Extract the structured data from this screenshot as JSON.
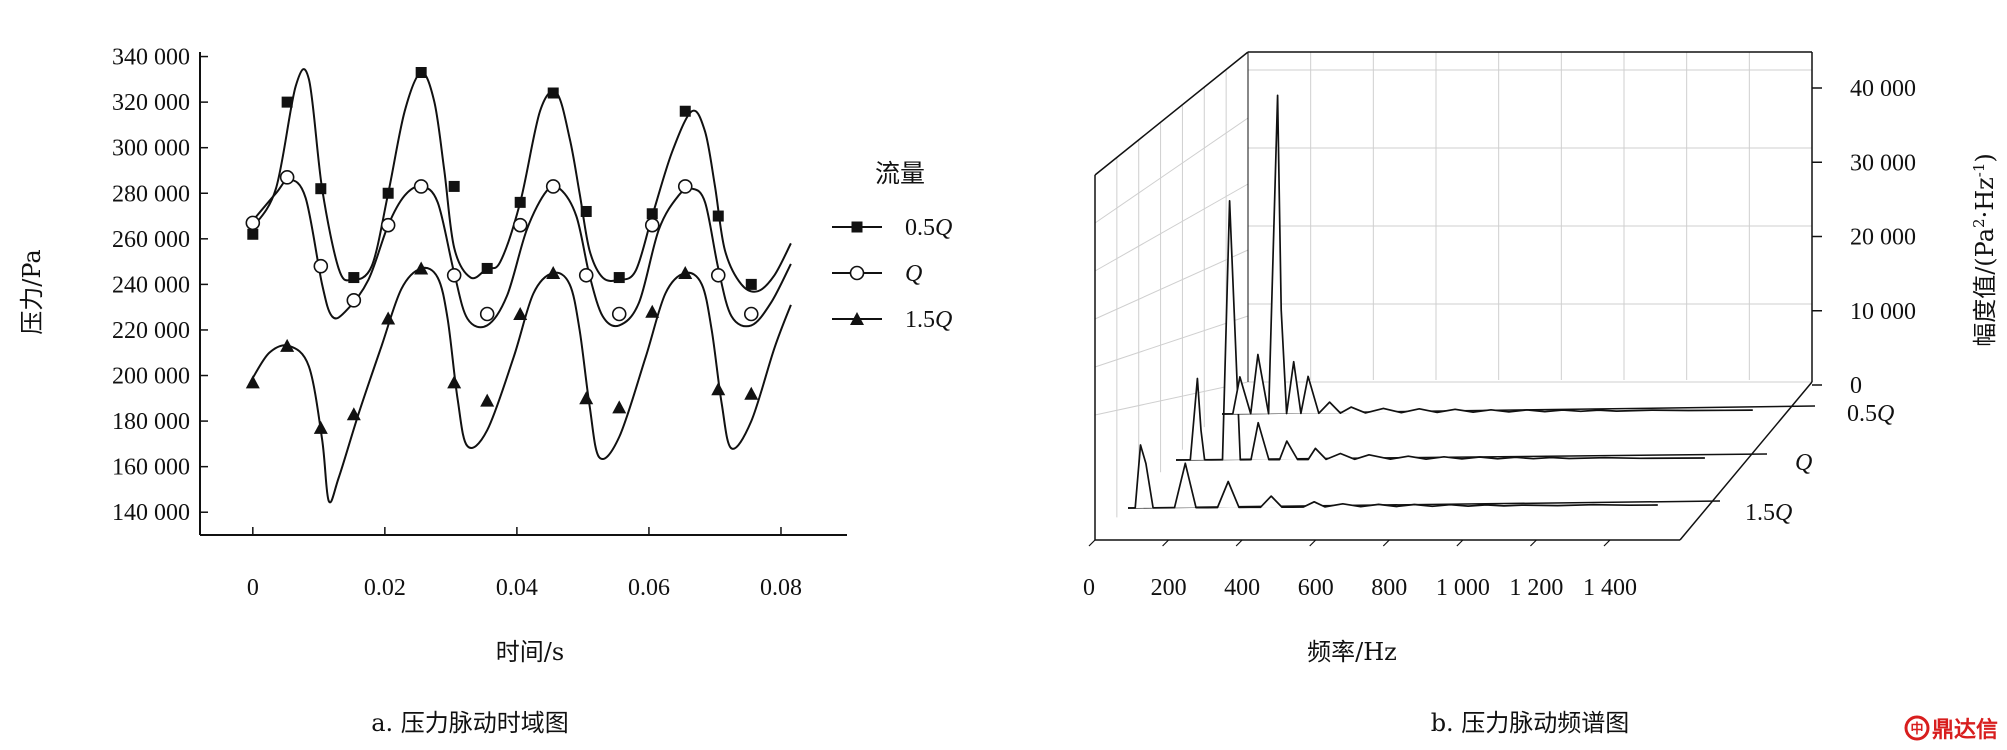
{
  "chart_data": [
    {
      "type": "line",
      "caption": "a. 压力脉动时域图",
      "xlabel": "时间/s",
      "ylabel": "压力/Pa",
      "xlim": [
        -0.008,
        0.09
      ],
      "ylim": [
        130000,
        342000
      ],
      "x_ticks": [
        0,
        0.02,
        0.04,
        0.06,
        0.08
      ],
      "x_tick_labels": [
        "0",
        "0.02",
        "0.04",
        "0.06",
        "0.08"
      ],
      "y_ticks": [
        140000,
        160000,
        180000,
        200000,
        220000,
        240000,
        260000,
        280000,
        300000,
        320000,
        340000
      ],
      "y_tick_labels": [
        "140 000",
        "160 000",
        "180 000",
        "200 000",
        "220 000",
        "240 000",
        "260 000",
        "280 000",
        "300 000",
        "320 000",
        "340 000"
      ],
      "legend": {
        "title": "流量",
        "placement": "right"
      },
      "series": [
        {
          "name": "0.5Q",
          "label_prefix": "0.5",
          "label_italic": "Q",
          "marker": "square",
          "x": [
            0,
            0.0035,
            0.0065,
            0.0085,
            0.0105,
            0.013,
            0.015,
            0.018,
            0.0205,
            0.023,
            0.0255,
            0.0275,
            0.029,
            0.0305,
            0.033,
            0.0355,
            0.0375,
            0.0405,
            0.0435,
            0.046,
            0.048,
            0.0495,
            0.051,
            0.053,
            0.0555,
            0.058,
            0.0605,
            0.0635,
            0.0665,
            0.0685,
            0.07,
            0.0715,
            0.074,
            0.0765,
            0.079,
            0.0815
          ],
          "y": [
            265000,
            282000,
            327000,
            330000,
            282000,
            247000,
            242000,
            248000,
            280000,
            316000,
            333000,
            320000,
            290000,
            256000,
            243000,
            247000,
            250000,
            276000,
            316000,
            324000,
            304000,
            280000,
            255000,
            243000,
            242000,
            246000,
            270000,
            298000,
            316000,
            307000,
            283000,
            255000,
            240000,
            237000,
            244000,
            258000
          ],
          "marker_x": [
            0,
            0.0052,
            0.0103,
            0.0153,
            0.0205,
            0.0255,
            0.0305,
            0.0355,
            0.0405,
            0.0455,
            0.0505,
            0.0555,
            0.0605,
            0.0655,
            0.0705,
            0.0755
          ],
          "marker_y": [
            262000,
            320000,
            282000,
            243000,
            280000,
            333000,
            283000,
            247000,
            276000,
            324000,
            272000,
            243000,
            271000,
            316000,
            270000,
            240000
          ]
        },
        {
          "name": "Q",
          "label_prefix": "",
          "label_italic": "Q",
          "marker": "circle",
          "x": [
            0,
            0.0035,
            0.0055,
            0.008,
            0.0105,
            0.012,
            0.014,
            0.0175,
            0.0205,
            0.023,
            0.0255,
            0.028,
            0.0305,
            0.0325,
            0.0355,
            0.0385,
            0.0415,
            0.0445,
            0.0465,
            0.049,
            0.051,
            0.053,
            0.0555,
            0.0585,
            0.0615,
            0.0645,
            0.0665,
            0.0685,
            0.0705,
            0.0725,
            0.0755,
            0.0785,
            0.0815
          ],
          "y": [
            268000,
            280000,
            286000,
            278000,
            240000,
            226000,
            228000,
            242000,
            266000,
            279000,
            283000,
            276000,
            245000,
            225000,
            222000,
            235000,
            264000,
            281000,
            282000,
            270000,
            244000,
            226000,
            222000,
            232000,
            264000,
            279000,
            282000,
            276000,
            247000,
            226000,
            222000,
            232000,
            249000
          ],
          "marker_x": [
            0,
            0.0052,
            0.0103,
            0.0153,
            0.0205,
            0.0255,
            0.0305,
            0.0355,
            0.0405,
            0.0455,
            0.0505,
            0.0555,
            0.0605,
            0.0655,
            0.0705,
            0.0755
          ],
          "marker_y": [
            267000,
            287000,
            248000,
            233000,
            266000,
            283000,
            244000,
            227000,
            266000,
            283000,
            244000,
            227000,
            266000,
            283000,
            244000,
            227000
          ]
        },
        {
          "name": "1.5Q",
          "label_prefix": "1.5",
          "label_italic": "Q",
          "marker": "triangle",
          "x": [
            0,
            0.0025,
            0.0055,
            0.0085,
            0.0105,
            0.0115,
            0.013,
            0.016,
            0.0195,
            0.0225,
            0.0255,
            0.028,
            0.0295,
            0.031,
            0.0325,
            0.0355,
            0.0395,
            0.0425,
            0.0455,
            0.048,
            0.0495,
            0.051,
            0.0525,
            0.0555,
            0.0595,
            0.0625,
            0.0655,
            0.068,
            0.0695,
            0.071,
            0.0725,
            0.0755,
            0.079,
            0.0815
          ],
          "y": [
            199000,
            210000,
            213000,
            204000,
            172000,
            145000,
            155000,
            183000,
            213000,
            238000,
            247000,
            243000,
            225000,
            190000,
            169000,
            176000,
            208000,
            236000,
            245000,
            240000,
            220000,
            187000,
            164000,
            173000,
            208000,
            236000,
            245000,
            240000,
            220000,
            188000,
            168000,
            180000,
            212000,
            231000
          ],
          "marker_x": [
            0,
            0.0052,
            0.0103,
            0.0153,
            0.0205,
            0.0255,
            0.0305,
            0.0355,
            0.0405,
            0.0455,
            0.0505,
            0.0555,
            0.0605,
            0.0655,
            0.0705,
            0.0755
          ],
          "marker_y": [
            197000,
            213000,
            177000,
            183000,
            225000,
            247000,
            197000,
            189000,
            227000,
            245000,
            190000,
            186000,
            228000,
            245000,
            194000,
            192000
          ]
        }
      ]
    },
    {
      "type": "line",
      "subtype": "waterfall-3d",
      "caption": "b. 压力脉动频谱图",
      "xlabel": "频率/Hz",
      "zlabel_parts": [
        "幅度值/(Pa",
        "2",
        "·Hz",
        "-1",
        ")"
      ],
      "xlim": [
        0,
        1500
      ],
      "zlim": [
        0,
        45000
      ],
      "x_ticks": [
        0,
        200,
        400,
        600,
        800,
        1000,
        1200,
        1400
      ],
      "x_tick_labels": [
        "0",
        "200",
        "400",
        "600",
        "800",
        "1 000",
        "1 200",
        "1 400"
      ],
      "z_ticks": [
        0,
        10000,
        20000,
        30000,
        40000
      ],
      "z_tick_labels": [
        "0",
        "10 000",
        "20 000",
        "30 000",
        "40 000"
      ],
      "grid": true,
      "series": [
        {
          "name": "1.5Q",
          "label_prefix": "1.5",
          "label_italic": "Q",
          "x": [
            0,
            20,
            35,
            50,
            70,
            100,
            130,
            160,
            190,
            220,
            250,
            280,
            310,
            340,
            370,
            400,
            430,
            460,
            490,
            520,
            550,
            600,
            650,
            700,
            750,
            800,
            850,
            900,
            950,
            1000,
            1050,
            1100,
            1200,
            1300,
            1400,
            1480
          ],
          "y": [
            0,
            0,
            8500,
            6000,
            0,
            0,
            0,
            6000,
            0,
            0,
            0,
            3500,
            0,
            0,
            0,
            1500,
            0,
            0,
            0,
            700,
            0,
            400,
            0,
            300,
            0,
            250,
            0,
            200,
            0,
            150,
            0,
            100,
            0,
            100,
            0,
            0
          ]
        },
        {
          "name": "Q",
          "label_prefix": "",
          "label_italic": "Q",
          "x": [
            0,
            40,
            60,
            70,
            80,
            100,
            130,
            150,
            180,
            210,
            230,
            260,
            290,
            310,
            340,
            370,
            390,
            420,
            460,
            500,
            540,
            600,
            650,
            700,
            750,
            800,
            850,
            900,
            950,
            1000,
            1050,
            1100,
            1200,
            1300,
            1400,
            1480
          ],
          "y": [
            0,
            0,
            11000,
            4000,
            0,
            0,
            0,
            35000,
            0,
            0,
            5000,
            0,
            0,
            2500,
            0,
            0,
            1500,
            0,
            800,
            0,
            600,
            0,
            400,
            0,
            300,
            0,
            250,
            0,
            200,
            0,
            150,
            0,
            100,
            0,
            0,
            0
          ]
        },
        {
          "name": "0.5Q",
          "label_prefix": "0.5",
          "label_italic": "Q",
          "x": [
            0,
            30,
            50,
            80,
            100,
            130,
            155,
            165,
            180,
            200,
            220,
            240,
            270,
            300,
            330,
            360,
            400,
            450,
            500,
            550,
            600,
            650,
            700,
            750,
            800,
            850,
            900,
            950,
            1000,
            1050,
            1100,
            1200,
            1300,
            1400,
            1480
          ],
          "y": [
            0,
            0,
            5000,
            0,
            8000,
            0,
            43000,
            14000,
            0,
            7000,
            0,
            5000,
            0,
            1500,
            0,
            800,
            0,
            600,
            0,
            500,
            0,
            400,
            0,
            300,
            0,
            250,
            0,
            200,
            0,
            150,
            0,
            100,
            0,
            0,
            0
          ]
        }
      ]
    }
  ],
  "watermark": {
    "text": "鼎达信",
    "color": "#d81e1e"
  }
}
